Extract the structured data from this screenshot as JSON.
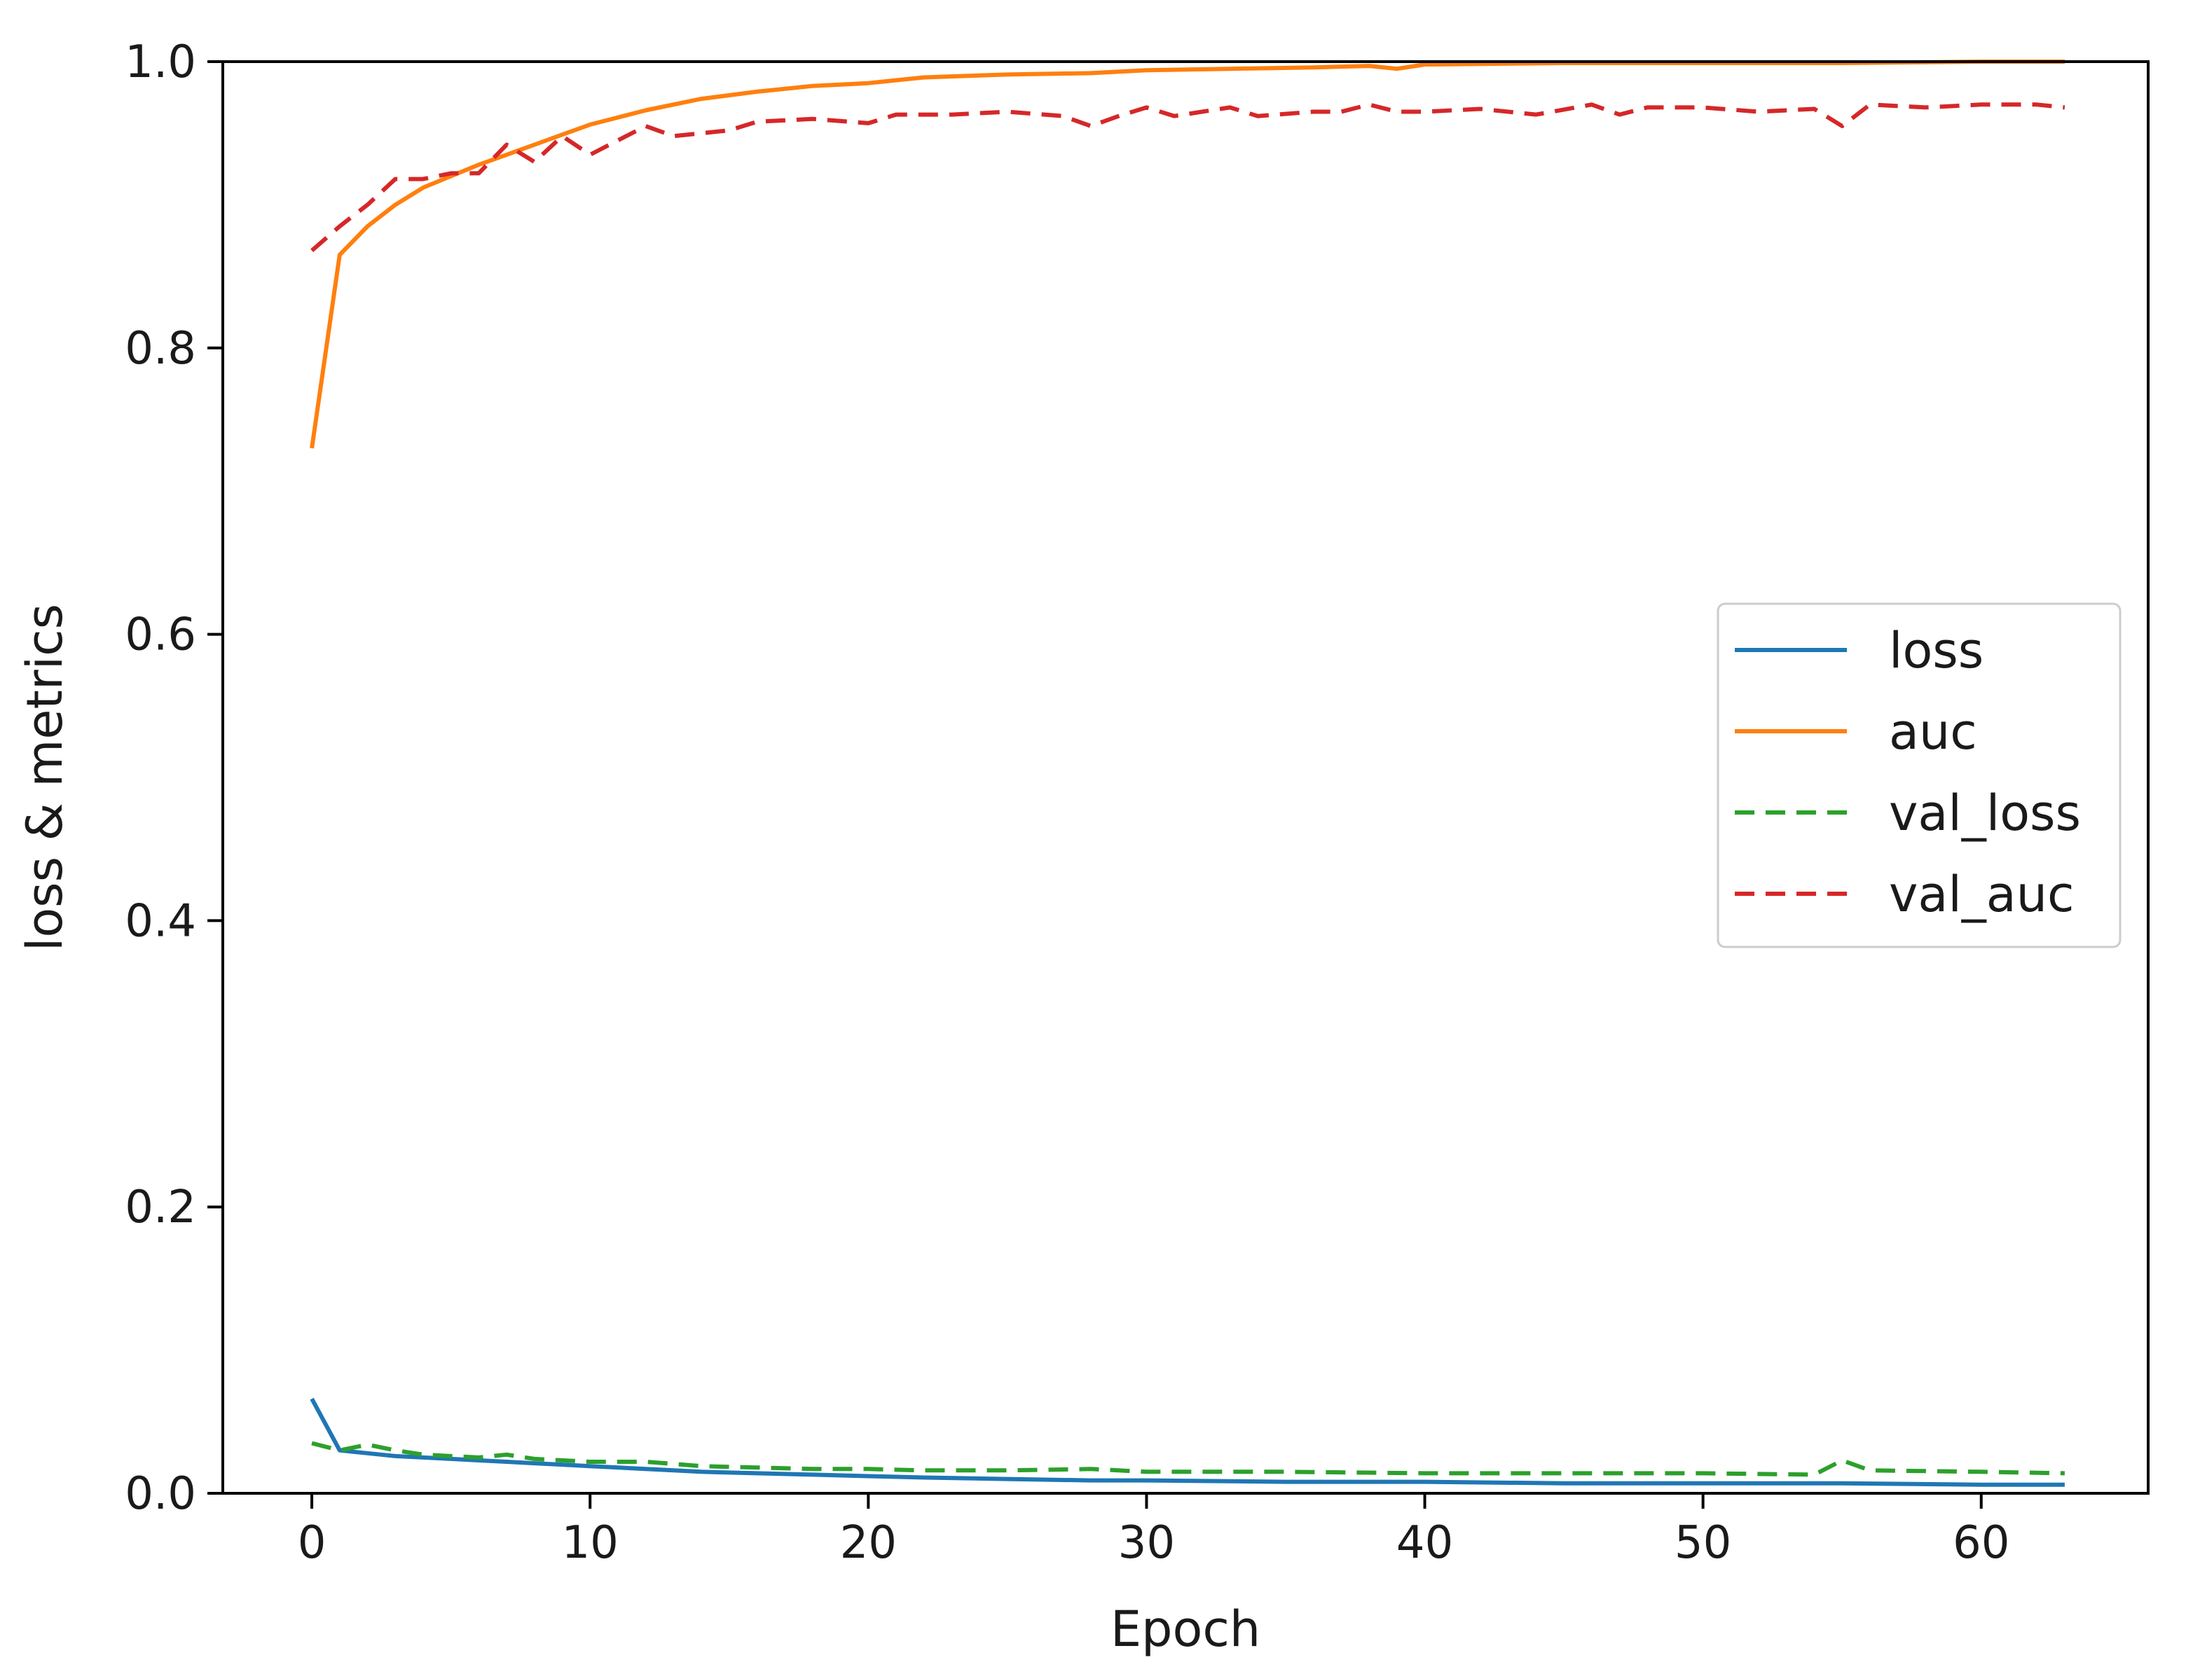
{
  "chart_data": {
    "type": "line",
    "xlabel": "Epoch",
    "ylabel": "loss & metrics",
    "xlim": [
      -3.2,
      66.0
    ],
    "ylim": [
      0.0,
      1.0
    ],
    "xticks": [
      0,
      10,
      20,
      30,
      40,
      50,
      60
    ],
    "xtick_labels": [
      "0",
      "10",
      "20",
      "30",
      "40",
      "50",
      "60"
    ],
    "yticks": [
      0.0,
      0.2,
      0.4,
      0.6,
      0.8,
      1.0
    ],
    "ytick_labels": [
      "0.0",
      "0.2",
      "0.4",
      "0.6",
      "0.8",
      "1.0"
    ],
    "grid": false,
    "legend_position": "center-right",
    "series": [
      {
        "name": "loss",
        "color": "#1f77b4",
        "style": "solid",
        "x": [
          0,
          1,
          2,
          3,
          4,
          5,
          6,
          7,
          8,
          9,
          10,
          12,
          14,
          16,
          18,
          20,
          22,
          25,
          28,
          30,
          35,
          40,
          45,
          50,
          55,
          60,
          63
        ],
        "y": [
          0.066,
          0.03,
          0.028,
          0.026,
          0.025,
          0.024,
          0.023,
          0.022,
          0.021,
          0.02,
          0.019,
          0.017,
          0.015,
          0.014,
          0.013,
          0.012,
          0.011,
          0.01,
          0.009,
          0.009,
          0.008,
          0.008,
          0.007,
          0.007,
          0.007,
          0.006,
          0.006
        ]
      },
      {
        "name": "auc",
        "color": "#ff7f0e",
        "style": "solid",
        "x": [
          0,
          1,
          2,
          3,
          4,
          5,
          6,
          7,
          8,
          9,
          10,
          12,
          14,
          16,
          18,
          20,
          22,
          25,
          28,
          30,
          33,
          36,
          38,
          39,
          40,
          45,
          50,
          55,
          60,
          63
        ],
        "y": [
          0.73,
          0.865,
          0.885,
          0.9,
          0.912,
          0.92,
          0.928,
          0.935,
          0.942,
          0.949,
          0.956,
          0.966,
          0.974,
          0.979,
          0.983,
          0.985,
          0.989,
          0.991,
          0.992,
          0.994,
          0.995,
          0.996,
          0.997,
          0.995,
          0.998,
          0.999,
          0.999,
          0.999,
          1.0,
          1.0
        ]
      },
      {
        "name": "val_loss",
        "color": "#2ca02c",
        "style": "dashed",
        "x": [
          0,
          1,
          2,
          3,
          4,
          5,
          6,
          7,
          8,
          10,
          12,
          14,
          16,
          18,
          20,
          22,
          25,
          28,
          30,
          35,
          40,
          45,
          50,
          54,
          55,
          56,
          60,
          63
        ],
        "y": [
          0.035,
          0.03,
          0.034,
          0.03,
          0.027,
          0.026,
          0.025,
          0.027,
          0.024,
          0.022,
          0.022,
          0.019,
          0.018,
          0.017,
          0.017,
          0.016,
          0.016,
          0.017,
          0.015,
          0.015,
          0.014,
          0.014,
          0.014,
          0.013,
          0.023,
          0.016,
          0.015,
          0.014
        ]
      },
      {
        "name": "val_auc",
        "color": "#d62728",
        "style": "dashed",
        "x": [
          0,
          1,
          2,
          3,
          4,
          5,
          6,
          7,
          8,
          9,
          10,
          11,
          12,
          13,
          14,
          15,
          16,
          18,
          20,
          21,
          23,
          25,
          27,
          28,
          29,
          30,
          31,
          32,
          33,
          34,
          36,
          37,
          38,
          39,
          40,
          42,
          44,
          46,
          47,
          48,
          50,
          52,
          54,
          55,
          56,
          58,
          60,
          62,
          63
        ],
        "y": [
          0.868,
          0.885,
          0.9,
          0.918,
          0.918,
          0.922,
          0.922,
          0.942,
          0.93,
          0.948,
          0.935,
          0.945,
          0.955,
          0.948,
          0.95,
          0.952,
          0.958,
          0.96,
          0.957,
          0.963,
          0.963,
          0.965,
          0.962,
          0.955,
          0.962,
          0.968,
          0.962,
          0.965,
          0.968,
          0.962,
          0.965,
          0.965,
          0.97,
          0.965,
          0.965,
          0.967,
          0.963,
          0.97,
          0.963,
          0.968,
          0.968,
          0.965,
          0.967,
          0.955,
          0.97,
          0.968,
          0.97,
          0.97,
          0.968
        ]
      }
    ]
  }
}
